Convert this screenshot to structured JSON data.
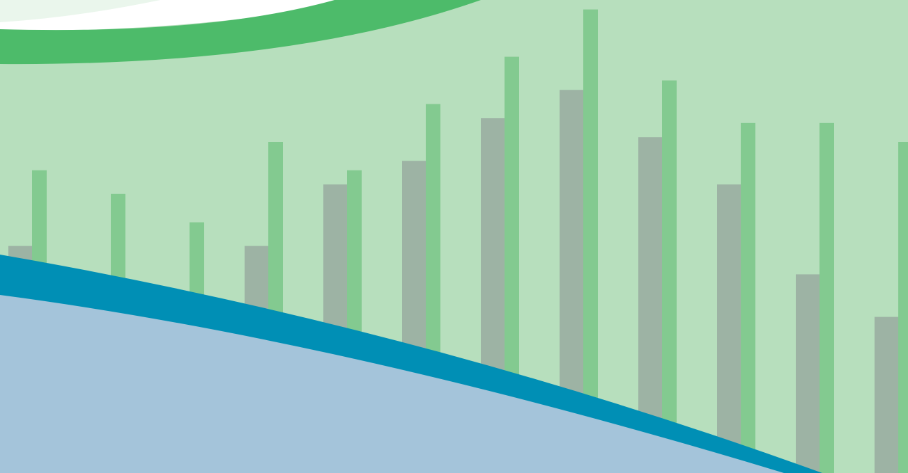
{
  "colors": {
    "background": "#b7dfbd",
    "top_band": "#4dbb6a",
    "top_light": "#e8f5e9",
    "top_white": "#ffffff",
    "gray_bar": "#9db3a4",
    "green_bar": "#83ca90",
    "blue_band": "#008fb5",
    "blue_fill": "#a4c4da"
  },
  "bars": {
    "gray_heights": [
      0.48,
      0.35,
      0.33,
      0.48,
      0.61,
      0.66,
      0.75,
      0.81,
      0.71,
      0.61,
      0.42,
      0.33
    ],
    "green_heights": [
      0.64,
      0.59,
      0.53,
      0.7,
      0.64,
      0.78,
      0.88,
      0.98,
      0.83,
      0.74,
      0.74,
      0.7
    ]
  }
}
